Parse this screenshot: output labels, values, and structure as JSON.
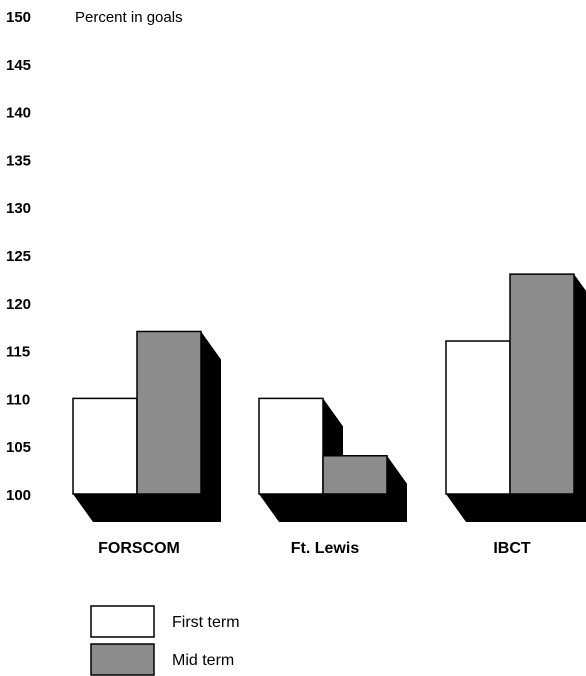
{
  "chart_data": {
    "type": "bar",
    "title": "",
    "xlabel": "",
    "ylabel": "Percent in goals",
    "ylim": [
      100,
      150
    ],
    "yticks": [
      100,
      105,
      110,
      115,
      120,
      125,
      130,
      135,
      140,
      145,
      150
    ],
    "grid": false,
    "legend_position": "bottom-left",
    "categories": [
      "FORSCOM",
      "Ft. Lewis",
      "IBCT"
    ],
    "series": [
      {
        "name": "First term",
        "values": [
          110,
          110,
          116
        ],
        "color": "#ffffff"
      },
      {
        "name": "Mid term",
        "values": [
          117,
          104,
          123
        ],
        "color": "#8c8c8c"
      }
    ],
    "shadow_color": "#000000"
  }
}
